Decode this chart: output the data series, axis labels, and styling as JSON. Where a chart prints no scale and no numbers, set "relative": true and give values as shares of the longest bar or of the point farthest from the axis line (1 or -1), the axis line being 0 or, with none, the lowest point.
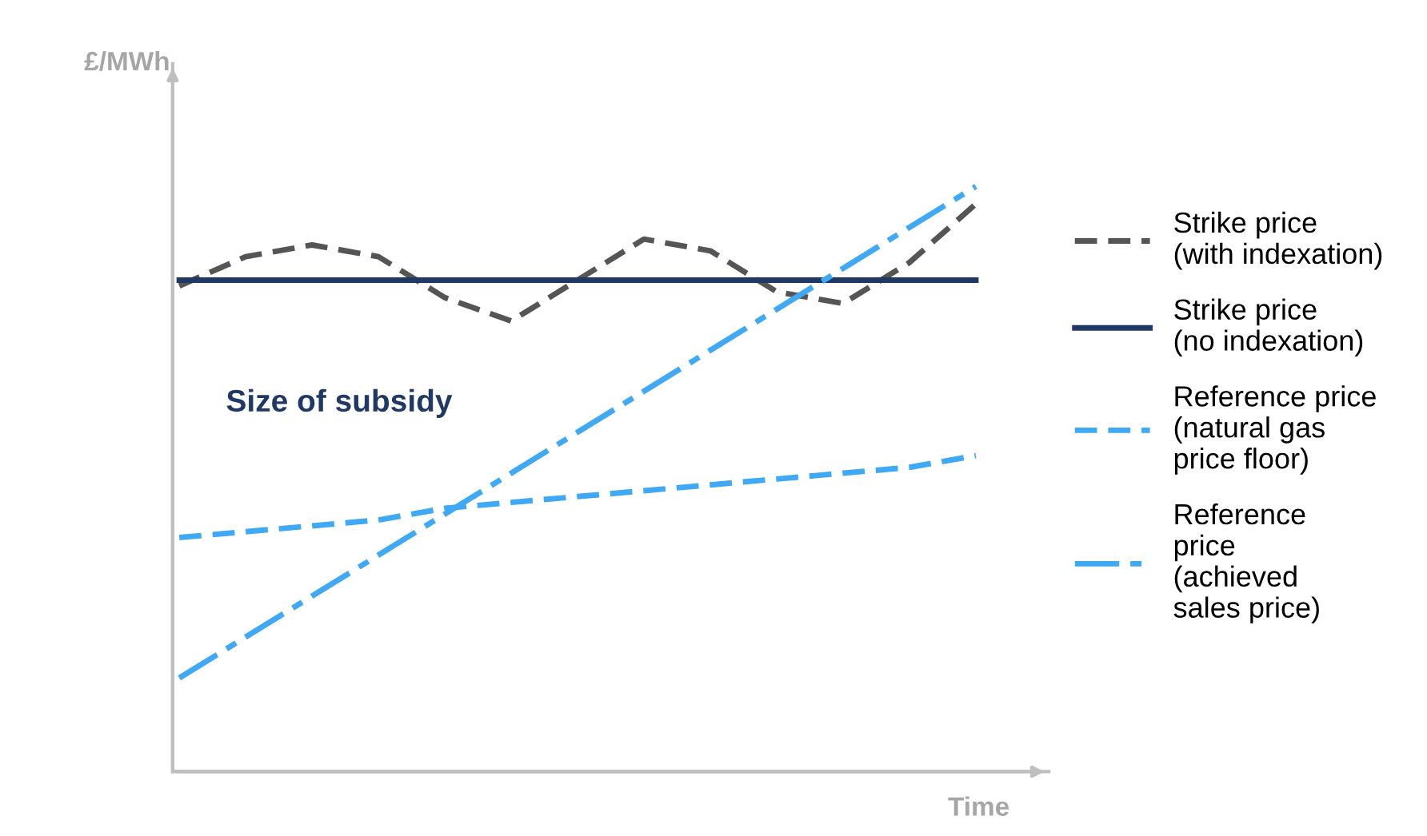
{
  "chart_data": {
    "type": "line",
    "relative": true,
    "ylabel": "£/MWh",
    "xlabel": "Time",
    "legend": "right",
    "categories": [
      null,
      null,
      null,
      null,
      null,
      null,
      null,
      null,
      null,
      null,
      null,
      null,
      null
    ],
    "annotations": [
      "Size of subsidy"
    ],
    "series": [
      {
        "name": "Strike price\n(with indexation)",
        "color": "#555555",
        "line_style": "dashed",
        "values": [
          0.83,
          0.88,
          0.9,
          0.88,
          0.81,
          0.77,
          0.84,
          0.91,
          0.89,
          0.82,
          0.8,
          0.87,
          0.97
        ]
      },
      {
        "name": "Strike price\n(no indexation)",
        "color": "#1f3864",
        "line_style": "solid",
        "values": [
          0.84,
          0.84,
          0.84,
          0.84,
          0.84,
          0.84,
          0.84,
          0.84,
          0.84,
          0.84,
          0.84,
          0.84,
          0.84
        ]
      },
      {
        "name": "Reference price\n(natural gas\nprice floor)",
        "color": "#3fa9f5",
        "line_style": "dashed",
        "values": [
          0.4,
          0.41,
          0.42,
          0.43,
          0.45,
          0.46,
          0.47,
          0.48,
          0.49,
          0.5,
          0.51,
          0.52,
          0.54
        ]
      },
      {
        "name": "Reference\nprice\n(achieved\nsales price)",
        "color": "#3fa9f5",
        "line_style": "dashdot",
        "values": [
          0.16,
          0.23,
          0.3,
          0.37,
          0.44,
          0.51,
          0.58,
          0.65,
          0.72,
          0.79,
          0.86,
          0.93,
          1.0
        ]
      }
    ]
  }
}
